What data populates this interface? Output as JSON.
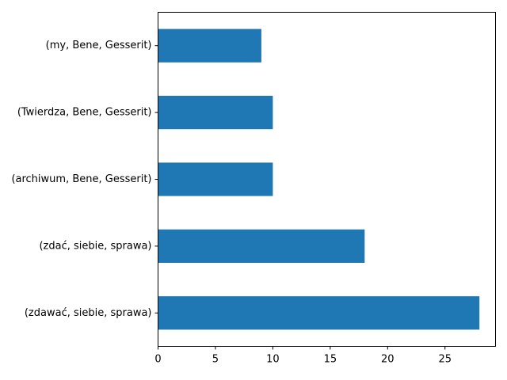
{
  "chart_data": {
    "type": "bar",
    "orientation": "horizontal",
    "categories": [
      "(zdawać, siebie, sprawa)",
      "(zdać, siebie, sprawa)",
      "(archiwum, Bene, Gesserit)",
      "(Twierdza, Bene, Gesserit)",
      "(my, Bene, Gesserit)"
    ],
    "values": [
      28,
      18,
      10,
      10,
      9
    ],
    "xlim": [
      0,
      29.4
    ],
    "xticks": [
      0,
      5,
      10,
      15,
      20,
      25
    ],
    "title": "",
    "xlabel": "",
    "ylabel": "",
    "grid": false,
    "bar_color": "#1f77b4"
  }
}
